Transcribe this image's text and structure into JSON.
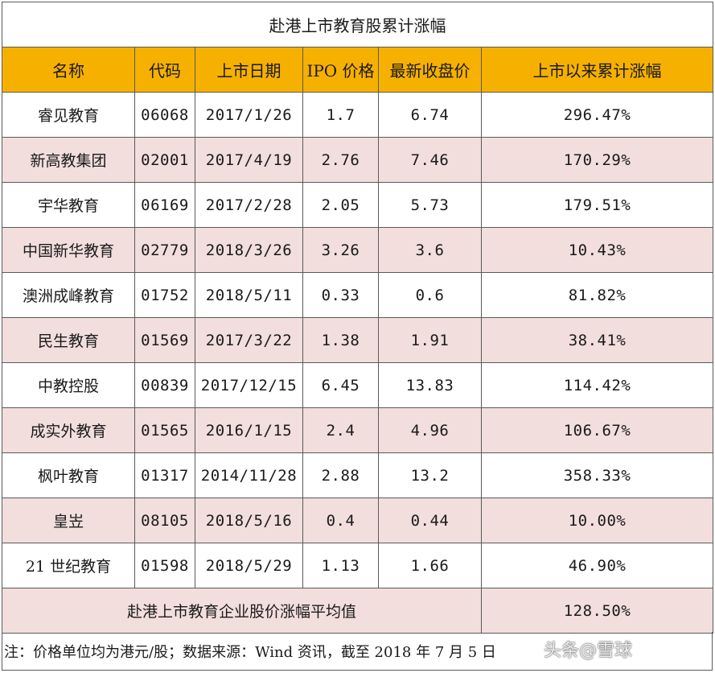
{
  "table": {
    "title": "赴港上市教育股累计涨幅",
    "headers": [
      "名称",
      "代码",
      "上市日期",
      "IPO 价格",
      "最新收盘价",
      "上市以来累计涨幅"
    ],
    "rows": [
      [
        "睿见教育",
        "06068",
        "2017/1/26",
        "1.7",
        "6.74",
        "296.47%"
      ],
      [
        "新高教集团",
        "02001",
        "2017/4/19",
        "2.76",
        "7.46",
        "170.29%"
      ],
      [
        "宇华教育",
        "06169",
        "2017/2/28",
        "2.05",
        "5.73",
        "179.51%"
      ],
      [
        "中国新华教育",
        "02779",
        "2018/3/26",
        "3.26",
        "3.6",
        "10.43%"
      ],
      [
        "澳洲成峰教育",
        "01752",
        "2018/5/11",
        "0.33",
        "0.6",
        "81.82%"
      ],
      [
        "民生教育",
        "01569",
        "2017/3/22",
        "1.38",
        "1.91",
        "38.41%"
      ],
      [
        "中教控股",
        "00839",
        "2017/12/15",
        "6.45",
        "13.83",
        "114.42%"
      ],
      [
        "成实外教育",
        "01565",
        "2016/1/15",
        "2.4",
        "4.96",
        "106.67%"
      ],
      [
        "枫叶教育",
        "01317",
        "2014/11/28",
        "2.88",
        "13.2",
        "358.33%"
      ],
      [
        "皇岦",
        "08105",
        "2018/5/16",
        "0.4",
        "0.44",
        "10.00%"
      ],
      [
        "21 世纪教育",
        "01598",
        "2018/5/29",
        "1.13",
        "1.66",
        "46.90%"
      ]
    ],
    "average_label": "赴港上市教育企业股价涨幅平均值",
    "average_value": "128.50%"
  },
  "footer": {
    "note": "注：价格单位均为港元/股；数据来源：Wind 资讯，截至 2018 年 7 月 5 日"
  },
  "watermark": {
    "icon": "snowball-icon",
    "text": "头条@雪球"
  },
  "colors": {
    "header_bg": "#f6b000",
    "band_bg": "#f2dedd",
    "border": "#5a5a5a"
  }
}
